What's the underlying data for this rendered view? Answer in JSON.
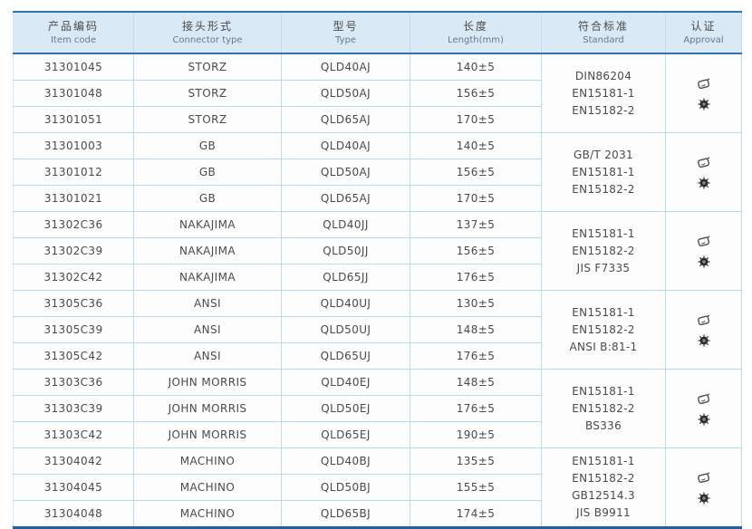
{
  "colors": {
    "accent_blue": "#2e74b5",
    "header_bg": "#d9eaf6",
    "grid_light_blue": "#b5d8f1",
    "bottom_border_blue": "#2160a8",
    "text": "#4a4a4a"
  },
  "approval_icons": [
    "certification-stamp-icon",
    "ship-wheel-icon"
  ],
  "table": {
    "headers": [
      {
        "zh": "产品编码",
        "en": "Item code"
      },
      {
        "zh": "接头形式",
        "en": "Connector type"
      },
      {
        "zh": "型号",
        "en": "Type"
      },
      {
        "zh": "长度",
        "en": "Length(mm)"
      },
      {
        "zh": "符合标准",
        "en": "Standard"
      },
      {
        "zh": "认证",
        "en": "Approval"
      }
    ],
    "groups": [
      {
        "rows": [
          {
            "item_code": "31301045",
            "connector": "STORZ",
            "type": "QLD40AJ",
            "length": "140±5"
          },
          {
            "item_code": "31301048",
            "connector": "STORZ",
            "type": "QLD50AJ",
            "length": "156±5"
          },
          {
            "item_code": "31301051",
            "connector": "STORZ",
            "type": "QLD65AJ",
            "length": "170±5"
          }
        ],
        "standards": [
          "DIN86204",
          "EN15181-1",
          "EN15182-2"
        ]
      },
      {
        "rows": [
          {
            "item_code": "31301003",
            "connector": "GB",
            "type": "QLD40AJ",
            "length": "140±5"
          },
          {
            "item_code": "31301012",
            "connector": "GB",
            "type": "QLD50AJ",
            "length": "156±5"
          },
          {
            "item_code": "31301021",
            "connector": "GB",
            "type": "QLD65AJ",
            "length": "170±5"
          }
        ],
        "standards": [
          "GB/T 2031",
          "EN15181-1",
          "EN15182-2"
        ]
      },
      {
        "rows": [
          {
            "item_code": "31302C36",
            "connector": "NAKAJIMA",
            "type": "QLD40JJ",
            "length": "137±5"
          },
          {
            "item_code": "31302C39",
            "connector": "NAKAJIMA",
            "type": "QLD50JJ",
            "length": "156±5"
          },
          {
            "item_code": "31302C42",
            "connector": "NAKAJIMA",
            "type": "QLD65JJ",
            "length": "176±5"
          }
        ],
        "standards": [
          "EN15181-1",
          "EN15182-2",
          "JIS F7335"
        ]
      },
      {
        "rows": [
          {
            "item_code": "31305C36",
            "connector": "ANSI",
            "type": "QLD40UJ",
            "length": "130±5"
          },
          {
            "item_code": "31305C39",
            "connector": "ANSI",
            "type": "QLD50UJ",
            "length": "148±5"
          },
          {
            "item_code": "31305C42",
            "connector": "ANSI",
            "type": "QLD65UJ",
            "length": "176±5"
          }
        ],
        "standards": [
          "EN15181-1",
          "EN15182-2",
          "ANSI B:81-1"
        ]
      },
      {
        "rows": [
          {
            "item_code": "31303C36",
            "connector": "JOHN MORRIS",
            "type": "QLD40EJ",
            "length": "148±5"
          },
          {
            "item_code": "31303C39",
            "connector": "JOHN MORRIS",
            "type": "QLD50EJ",
            "length": "176±5"
          },
          {
            "item_code": "31303C42",
            "connector": "JOHN MORRIS",
            "type": "QLD65EJ",
            "length": "190±5"
          }
        ],
        "standards": [
          "EN15181-1",
          "EN15182-2",
          "BS336"
        ]
      },
      {
        "rows": [
          {
            "item_code": "31304042",
            "connector": "MACHINO",
            "type": "QLD40BJ",
            "length": "135±5"
          },
          {
            "item_code": "31304045",
            "connector": "MACHINO",
            "type": "QLD50BJ",
            "length": "155±5"
          },
          {
            "item_code": "31304048",
            "connector": "MACHINO",
            "type": "QLD65BJ",
            "length": "174±5"
          }
        ],
        "standards": [
          "EN15181-1",
          "EN15182-2",
          "GB12514.3",
          "JIS B9911"
        ]
      }
    ]
  }
}
